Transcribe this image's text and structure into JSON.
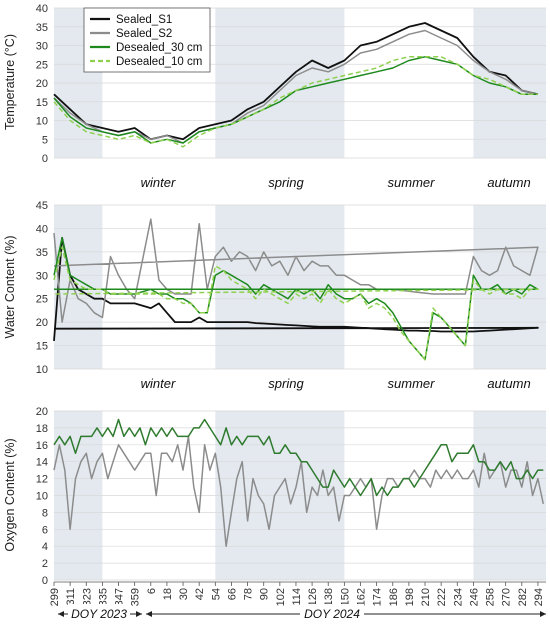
{
  "colors": {
    "Sealed_S1": "#111111",
    "Sealed_S2": "#8c8c8c",
    "Desealed_30 cm": "#1e8a1e",
    "Desealed_10 cm": "#8fd14f",
    "oxygen_desealed": "#2e7a2e",
    "shade": "#e3e9ef"
  },
  "season_labels": [
    "winter",
    "spring",
    "summer",
    "autumn"
  ],
  "doy_labels": [
    "DOY 2023",
    "DOY 2024"
  ],
  "x_ticks": [
    299,
    311,
    323,
    335,
    347,
    359,
    6,
    18,
    30,
    42,
    54,
    66,
    78,
    90,
    102,
    114,
    126,
    138,
    150,
    162,
    174,
    186,
    198,
    210,
    222,
    234,
    246,
    258,
    270,
    282,
    294
  ],
  "legend": [
    {
      "name": "Sealed_S1",
      "style": "solid"
    },
    {
      "name": "Sealed_S2",
      "style": "solid"
    },
    {
      "name": "Desealed_30 cm",
      "style": "solid"
    },
    {
      "name": "Desealed_10 cm",
      "style": "dashed"
    }
  ],
  "chart_data": [
    {
      "type": "line",
      "id": "temperature",
      "ylabel": "Temperature (°C)",
      "ylim": [
        0,
        40
      ],
      "yticks": [
        0,
        5,
        10,
        15,
        20,
        25,
        30,
        35,
        40
      ],
      "grid": true,
      "legend_position": "top-left",
      "x": [
        299,
        311,
        323,
        335,
        347,
        359,
        6,
        18,
        30,
        42,
        54,
        66,
        78,
        90,
        102,
        114,
        126,
        138,
        150,
        162,
        174,
        186,
        198,
        210,
        222,
        234,
        246,
        258,
        270,
        282,
        294
      ],
      "series": [
        {
          "name": "Sealed_S1",
          "values": [
            17,
            13,
            9,
            8,
            7,
            8,
            5,
            6,
            5,
            8,
            9,
            10,
            13,
            15,
            19,
            23,
            26,
            24,
            26,
            30,
            31,
            33,
            35,
            36,
            34,
            32,
            27,
            23,
            22,
            18,
            17
          ]
        },
        {
          "name": "Sealed_S2",
          "values": [
            16,
            12,
            9,
            7,
            6,
            7,
            5,
            6,
            4,
            7,
            8,
            9,
            12,
            14,
            18,
            22,
            24,
            23,
            25,
            28,
            29,
            31,
            33,
            34,
            32,
            30,
            26,
            23,
            21,
            18,
            17
          ]
        },
        {
          "name": "Desealed_30 cm",
          "values": [
            16,
            11,
            8,
            7,
            6,
            7,
            4,
            5,
            4,
            7,
            8,
            9,
            11,
            13,
            15,
            18,
            19,
            20,
            21,
            22,
            23,
            24,
            26,
            27,
            26,
            25,
            22,
            20,
            19,
            17,
            17
          ]
        },
        {
          "name": "Desealed_10 cm",
          "values": [
            15,
            10,
            7,
            6,
            5,
            6,
            4,
            5,
            3,
            6,
            8,
            9,
            11,
            13,
            16,
            18,
            20,
            21,
            22,
            23,
            24,
            26,
            27,
            27,
            27,
            25,
            22,
            21,
            19,
            17,
            17
          ]
        }
      ]
    },
    {
      "type": "line",
      "id": "water",
      "ylabel": "Water Content (%)",
      "ylim": [
        10,
        45
      ],
      "yticks": [
        10,
        15,
        20,
        25,
        30,
        35,
        40,
        45
      ],
      "grid": true,
      "x": [
        299,
        305,
        311,
        317,
        323,
        329,
        335,
        341,
        347,
        353,
        359,
        6,
        12,
        18,
        24,
        30,
        36,
        42,
        48,
        54,
        60,
        66,
        72,
        78,
        84,
        90,
        96,
        102,
        108,
        114,
        120,
        126,
        132,
        138,
        144,
        150,
        156,
        162,
        168,
        174,
        180,
        186,
        192,
        198,
        204,
        210,
        216,
        222,
        228,
        234,
        240,
        246,
        252,
        258,
        264,
        270,
        276,
        282,
        288,
        294,
        299
      ],
      "series": [
        {
          "name": "Sealed_S1",
          "values": [
            16,
            38,
            30,
            27,
            26,
            25,
            25,
            24,
            24,
            24,
            24,
            23,
            24,
            22,
            20,
            20,
            20,
            21,
            20,
            20,
            20,
            20,
            20,
            20,
            19.8,
            19.7,
            19.6,
            19.5,
            19.4,
            19.3,
            19.2,
            19.1,
            19,
            19,
            19,
            19,
            18.9,
            18.8,
            18.7,
            18.6,
            18.5,
            18.4,
            18.3,
            18.2,
            18.2,
            18.1,
            18.1,
            18,
            18,
            18,
            18,
            18,
            18.1,
            18.2,
            18.3,
            18.4,
            18.5,
            18.6,
            18.7,
            18.8,
            18.6
          ]
        },
        {
          "name": "Sealed_S2",
          "values": [
            39,
            20,
            29,
            25,
            24,
            22,
            21,
            34,
            30,
            27,
            25,
            42,
            29,
            27,
            26,
            26,
            26,
            41,
            27,
            34,
            36,
            33,
            35,
            34,
            31,
            35,
            32,
            33,
            30,
            34,
            31,
            33,
            32,
            32,
            30,
            30,
            29,
            28,
            28,
            27,
            27,
            27,
            26.8,
            26.6,
            26.4,
            26.2,
            26,
            26,
            26,
            26,
            26,
            34,
            31,
            30,
            31,
            36,
            32,
            31,
            30,
            36,
            32
          ]
        },
        {
          "name": "Desealed_30 cm",
          "values": [
            30,
            38,
            30,
            29,
            28,
            27,
            27,
            26,
            26,
            26,
            26,
            27,
            26,
            26,
            25,
            25,
            24,
            22,
            22,
            30,
            31,
            30,
            29,
            28,
            26,
            28,
            27,
            26,
            25,
            27,
            26,
            27,
            25,
            28,
            26,
            25,
            25,
            26,
            24,
            25,
            24,
            22,
            19,
            16,
            14,
            12,
            22,
            21,
            19,
            17,
            15,
            30,
            27,
            27,
            28,
            26,
            27,
            26,
            28,
            27,
            27
          ]
        },
        {
          "name": "Desealed_10 cm",
          "values": [
            29,
            36,
            29,
            28,
            27,
            27,
            27,
            26,
            26,
            26,
            26,
            26,
            26,
            25,
            25,
            24,
            24,
            22,
            22,
            32,
            31,
            29,
            28,
            27,
            25,
            27,
            26,
            25,
            24,
            26,
            25,
            26,
            24,
            27,
            25,
            24,
            25,
            26,
            23,
            24,
            23,
            21,
            18,
            16,
            14,
            12,
            23,
            21,
            19,
            17,
            15,
            29,
            27,
            26,
            27,
            26,
            26,
            25,
            27,
            27,
            26
          ]
        }
      ]
    },
    {
      "type": "line",
      "id": "oxygen",
      "ylabel": "Oxygen Content (%)",
      "ylim": [
        0,
        20
      ],
      "yticks": [
        0,
        2,
        4,
        6,
        8,
        10,
        12,
        14,
        16,
        18,
        20
      ],
      "grid": true,
      "x": [
        299,
        303,
        307,
        311,
        315,
        319,
        323,
        327,
        331,
        335,
        339,
        343,
        347,
        351,
        355,
        359,
        363,
        2,
        6,
        10,
        14,
        18,
        22,
        26,
        30,
        34,
        38,
        42,
        46,
        50,
        54,
        58,
        62,
        66,
        70,
        74,
        78,
        82,
        86,
        90,
        94,
        98,
        102,
        106,
        110,
        114,
        118,
        122,
        126,
        130,
        134,
        138,
        142,
        146,
        150,
        154,
        158,
        162,
        166,
        170,
        174,
        178,
        182,
        186,
        190,
        194,
        198,
        202,
        206,
        210,
        214,
        218,
        222,
        226,
        230,
        234,
        238,
        242,
        246,
        250,
        254,
        258,
        262,
        266,
        270,
        274,
        278,
        282,
        286,
        290,
        294,
        298
      ],
      "series": [
        {
          "name": "Sealed_S2",
          "values": [
            13,
            16,
            13,
            6,
            12,
            14,
            15,
            12,
            14,
            15,
            12,
            14,
            16,
            15,
            14,
            13,
            14,
            15,
            15,
            10,
            15,
            15,
            14,
            16,
            13,
            17,
            11,
            8,
            16,
            13,
            15,
            11,
            4,
            8,
            12,
            14,
            7,
            12,
            10,
            9,
            6,
            10,
            11,
            12,
            9,
            11,
            14,
            8,
            11,
            10,
            13,
            10,
            11,
            7,
            10,
            10,
            11,
            12,
            11,
            12,
            6,
            10,
            12,
            12,
            11,
            12,
            12,
            13,
            12,
            12,
            11,
            13,
            12,
            13,
            12,
            13,
            12,
            12,
            13,
            11,
            15,
            12,
            13,
            14,
            11,
            13,
            13,
            11,
            14,
            10,
            12,
            9
          ]
        },
        {
          "name": "oxygen_desealed",
          "values": [
            16,
            17,
            16,
            17,
            15,
            17,
            17,
            17,
            18,
            17,
            18,
            17,
            19,
            17,
            18,
            17,
            18,
            16,
            18,
            17,
            18,
            17,
            18,
            17,
            17,
            17,
            18,
            18,
            19,
            18,
            17,
            16,
            18,
            16,
            17,
            16,
            17,
            17,
            17,
            16,
            17,
            15,
            15,
            16,
            15,
            15,
            14,
            14,
            13,
            12,
            11,
            11,
            13,
            12,
            11,
            12,
            11,
            10,
            11,
            12,
            10,
            11,
            10,
            11,
            11,
            12,
            12,
            11,
            12,
            13,
            14,
            15,
            16,
            16,
            14,
            15,
            15,
            15,
            16,
            14,
            14,
            13,
            13,
            14,
            13,
            14,
            12,
            12,
            13,
            12,
            13,
            13
          ]
        }
      ]
    }
  ]
}
